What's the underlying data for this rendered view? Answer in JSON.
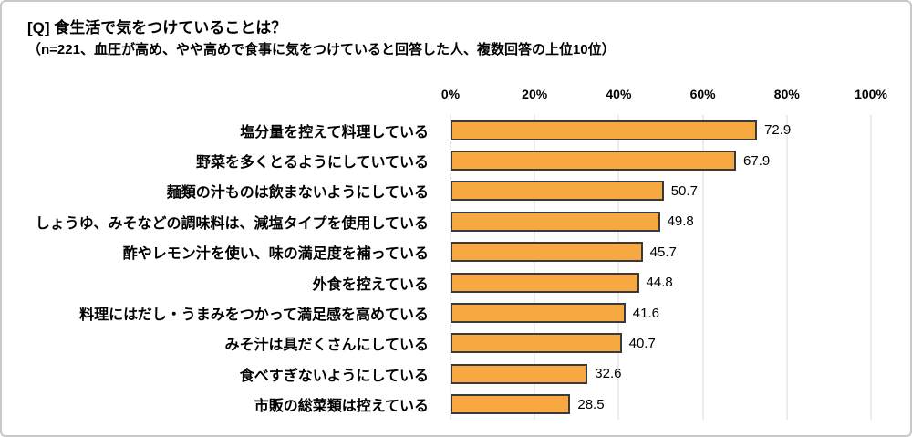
{
  "title": "[Q] 食生活で気をつけていることは？",
  "subtitle": "（n=221、血圧が高め、やや高めで食事に気をつけていると回答した人、複数回答の上位10位）",
  "colors": {
    "bar_fill": "#F8A840",
    "bar_border": "#3A3A3A",
    "gridline": "#D9D9D9",
    "frame_border": "#C9C9C9"
  },
  "chart_data": {
    "type": "bar",
    "orientation": "horizontal",
    "title": "[Q] 食生活で気をつけていることは？",
    "subtitle": "（n=221、血圧が高め、やや高めで食事に気をつけていると回答した人、複数回答の上位10位）",
    "categories": [
      "塩分量を控えて料理している",
      "野菜を多くとるようにしていている",
      "麺類の汁ものは飲まないようにしている",
      "しょうゆ、みそなどの調味料は、減塩タイプを使用している",
      "酢やレモン汁を使い、味の満足度を補っている",
      "外食を控えている",
      "料理にはだし・うまみをつかって満足感を高めている",
      "みそ汁は具だくさんにしている",
      "食べすぎないようにしている",
      "市販の総菜類は控えている"
    ],
    "values": [
      72.9,
      67.9,
      50.7,
      49.8,
      45.7,
      44.8,
      41.6,
      40.7,
      32.6,
      28.5
    ],
    "value_labels": [
      "72.9",
      "67.9",
      "50.7",
      "49.8",
      "45.7",
      "44.8",
      "41.6",
      "40.7",
      "32.6",
      "28.5"
    ],
    "x_ticks": [
      "0%",
      "20%",
      "40%",
      "60%",
      "80%",
      "100%"
    ],
    "xlim": [
      0,
      100
    ],
    "xlabel": "",
    "ylabel": "",
    "grid": true,
    "legend": false
  }
}
